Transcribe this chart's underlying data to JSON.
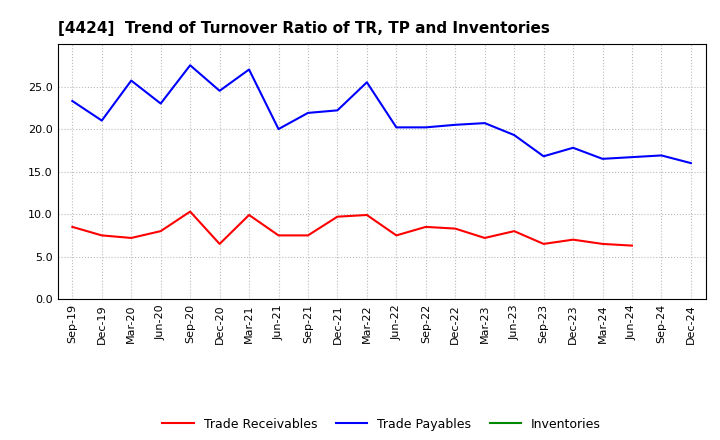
{
  "title": "[4424]  Trend of Turnover Ratio of TR, TP and Inventories",
  "x_labels": [
    "Sep-19",
    "Dec-19",
    "Mar-20",
    "Jun-20",
    "Sep-20",
    "Dec-20",
    "Mar-21",
    "Jun-21",
    "Sep-21",
    "Dec-21",
    "Mar-22",
    "Jun-22",
    "Sep-22",
    "Dec-22",
    "Mar-23",
    "Jun-23",
    "Sep-23",
    "Dec-23",
    "Mar-24",
    "Jun-24",
    "Sep-24",
    "Dec-24"
  ],
  "trade_receivables": [
    8.5,
    7.5,
    7.2,
    8.0,
    10.3,
    6.5,
    9.9,
    7.5,
    7.5,
    9.7,
    9.9,
    7.5,
    8.5,
    8.3,
    7.2,
    8.0,
    6.5,
    7.0,
    6.5,
    6.3,
    null,
    null
  ],
  "trade_payables": [
    23.3,
    21.0,
    25.7,
    23.0,
    27.5,
    24.5,
    27.0,
    20.0,
    21.9,
    22.2,
    25.5,
    20.2,
    20.2,
    20.5,
    20.7,
    19.3,
    16.8,
    17.8,
    16.5,
    16.7,
    16.9,
    16.0
  ],
  "inventories": [
    null,
    null,
    null,
    null,
    null,
    null,
    null,
    null,
    null,
    null,
    null,
    null,
    null,
    null,
    null,
    null,
    null,
    null,
    null,
    null,
    null,
    null
  ],
  "ylim": [
    0.0,
    30.0
  ],
  "yticks": [
    0.0,
    5.0,
    10.0,
    15.0,
    20.0,
    25.0
  ],
  "colors": {
    "trade_receivables": "#ff0000",
    "trade_payables": "#0000ff",
    "inventories": "#008800"
  },
  "background_color": "#ffffff",
  "grid_color": "#bbbbbb",
  "linewidth": 1.5,
  "title_fontsize": 11,
  "tick_fontsize": 8,
  "legend_fontsize": 9
}
